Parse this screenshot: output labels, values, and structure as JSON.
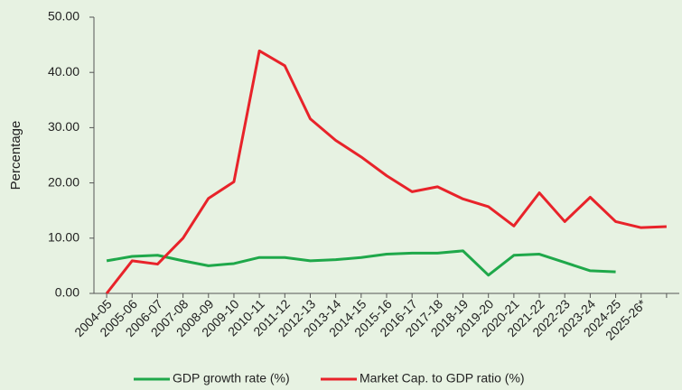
{
  "chart_data": {
    "type": "line",
    "y_label": "Percentage",
    "categories": [
      "2004-05",
      "2005-06",
      "2006-07",
      "2007-08",
      "2008-09",
      "2009-10",
      "2010-11",
      "2011-12",
      "2012-13",
      "2013-14",
      "2014-15",
      "2015-16",
      "2016-17",
      "2017-18",
      "2018-19",
      "2019-20",
      "2020-21",
      "2021-22",
      "2022-23",
      "2023-24",
      "2024-25",
      "2025-26*",
      null
    ],
    "series": [
      {
        "name": "GDP growth rate (%)",
        "color": "#1fa84a",
        "values": [
          5.9,
          6.7,
          6.9,
          5.9,
          5.0,
          5.4,
          6.5,
          6.5,
          5.9,
          6.1,
          6.5,
          7.1,
          7.3,
          7.3,
          7.7,
          3.3,
          6.9,
          7.1,
          5.6,
          4.1,
          3.9,
          null,
          null
        ]
      },
      {
        "name": "Market Cap. to GDP ratio (%)",
        "color": "#e8232a",
        "values": [
          0.0,
          5.9,
          5.3,
          10.0,
          17.2,
          20.2,
          43.9,
          41.2,
          31.6,
          27.7,
          24.7,
          21.3,
          18.4,
          19.3,
          17.1,
          15.7,
          12.2,
          18.2,
          13.0,
          17.4,
          13.0,
          11.9,
          12.1
        ]
      }
    ],
    "ylim": [
      0,
      50
    ],
    "yticks": [
      {
        "value": 0,
        "label": "0.00"
      },
      {
        "value": 10,
        "label": "10.00"
      },
      {
        "value": 20,
        "label": "20.00"
      },
      {
        "value": 30,
        "label": "30.00"
      },
      {
        "value": 40,
        "label": "40.00"
      },
      {
        "value": 50,
        "label": "50.00"
      }
    ],
    "legend": "bottom"
  }
}
